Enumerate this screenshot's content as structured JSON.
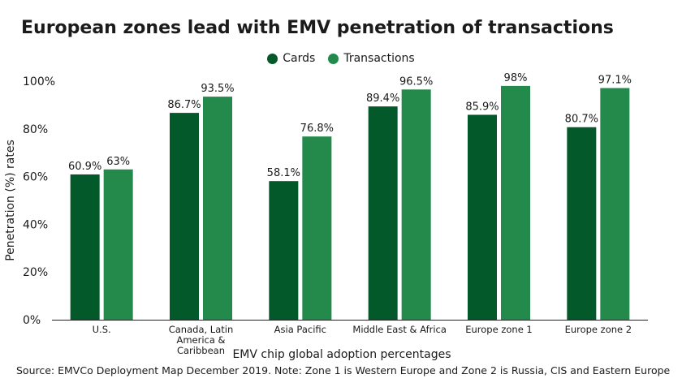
{
  "chart_data": {
    "type": "bar",
    "title": "European zones lead with EMV penetration of transactions",
    "xlabel": "EMV chip global adoption percentages",
    "ylabel": "Penetration (%) rates",
    "ylim": [
      0,
      100
    ],
    "yticks": [
      "0%",
      "20%",
      "40%",
      "60%",
      "80%",
      "100%"
    ],
    "categories": [
      [
        "U.S."
      ],
      [
        "Canada, Latin",
        "America &",
        "Caribbean"
      ],
      [
        "Asia Pacific"
      ],
      [
        "Middle East & Africa"
      ],
      [
        "Europe zone 1"
      ],
      [
        "Europe zone 2"
      ]
    ],
    "series": [
      {
        "name": "Cards",
        "color": "#04592a",
        "values": [
          60.9,
          86.7,
          58.1,
          89.4,
          85.9,
          80.7
        ],
        "labels": [
          "60.9%",
          "86.7%",
          "58.1%",
          "89.4%",
          "85.9%",
          "80.7%"
        ]
      },
      {
        "name": "Transactions",
        "color": "#238a4c",
        "values": [
          63,
          93.5,
          76.8,
          96.5,
          98,
          97.1
        ],
        "labels": [
          "63%",
          "93.5%",
          "76.8%",
          "96.5%",
          "98%",
          "97.1%"
        ]
      }
    ],
    "grid": false,
    "legend_position": "top-center"
  },
  "source": "Source: EMVCo Deployment Map December 2019. Note: Zone 1 is Western Europe and Zone 2 is Russia, CIS and Eastern Europe"
}
